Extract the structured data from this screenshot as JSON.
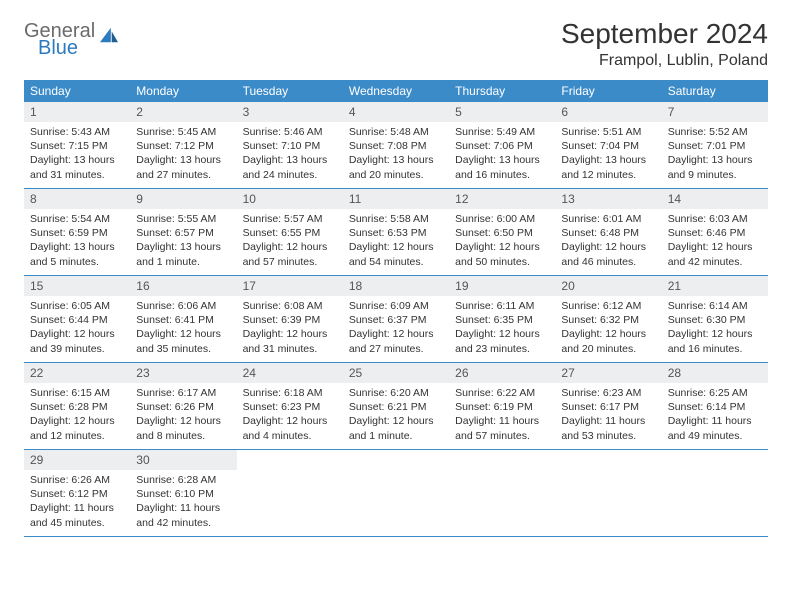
{
  "brand": {
    "line1": "General",
    "line2": "Blue"
  },
  "title": "September 2024",
  "location": "Frampol, Lublin, Poland",
  "colors": {
    "header_bar": "#3b8bc9",
    "daynum_bg": "#eceeef",
    "rule": "#3b8bc9",
    "text": "#333333",
    "logo_gray": "#6b6b6b",
    "logo_blue": "#2d7bbf"
  },
  "dow": [
    "Sunday",
    "Monday",
    "Tuesday",
    "Wednesday",
    "Thursday",
    "Friday",
    "Saturday"
  ],
  "weeks": [
    [
      {
        "n": "1",
        "sunrise": "Sunrise: 5:43 AM",
        "sunset": "Sunset: 7:15 PM",
        "daylight": "Daylight: 13 hours and 31 minutes."
      },
      {
        "n": "2",
        "sunrise": "Sunrise: 5:45 AM",
        "sunset": "Sunset: 7:12 PM",
        "daylight": "Daylight: 13 hours and 27 minutes."
      },
      {
        "n": "3",
        "sunrise": "Sunrise: 5:46 AM",
        "sunset": "Sunset: 7:10 PM",
        "daylight": "Daylight: 13 hours and 24 minutes."
      },
      {
        "n": "4",
        "sunrise": "Sunrise: 5:48 AM",
        "sunset": "Sunset: 7:08 PM",
        "daylight": "Daylight: 13 hours and 20 minutes."
      },
      {
        "n": "5",
        "sunrise": "Sunrise: 5:49 AM",
        "sunset": "Sunset: 7:06 PM",
        "daylight": "Daylight: 13 hours and 16 minutes."
      },
      {
        "n": "6",
        "sunrise": "Sunrise: 5:51 AM",
        "sunset": "Sunset: 7:04 PM",
        "daylight": "Daylight: 13 hours and 12 minutes."
      },
      {
        "n": "7",
        "sunrise": "Sunrise: 5:52 AM",
        "sunset": "Sunset: 7:01 PM",
        "daylight": "Daylight: 13 hours and 9 minutes."
      }
    ],
    [
      {
        "n": "8",
        "sunrise": "Sunrise: 5:54 AM",
        "sunset": "Sunset: 6:59 PM",
        "daylight": "Daylight: 13 hours and 5 minutes."
      },
      {
        "n": "9",
        "sunrise": "Sunrise: 5:55 AM",
        "sunset": "Sunset: 6:57 PM",
        "daylight": "Daylight: 13 hours and 1 minute."
      },
      {
        "n": "10",
        "sunrise": "Sunrise: 5:57 AM",
        "sunset": "Sunset: 6:55 PM",
        "daylight": "Daylight: 12 hours and 57 minutes."
      },
      {
        "n": "11",
        "sunrise": "Sunrise: 5:58 AM",
        "sunset": "Sunset: 6:53 PM",
        "daylight": "Daylight: 12 hours and 54 minutes."
      },
      {
        "n": "12",
        "sunrise": "Sunrise: 6:00 AM",
        "sunset": "Sunset: 6:50 PM",
        "daylight": "Daylight: 12 hours and 50 minutes."
      },
      {
        "n": "13",
        "sunrise": "Sunrise: 6:01 AM",
        "sunset": "Sunset: 6:48 PM",
        "daylight": "Daylight: 12 hours and 46 minutes."
      },
      {
        "n": "14",
        "sunrise": "Sunrise: 6:03 AM",
        "sunset": "Sunset: 6:46 PM",
        "daylight": "Daylight: 12 hours and 42 minutes."
      }
    ],
    [
      {
        "n": "15",
        "sunrise": "Sunrise: 6:05 AM",
        "sunset": "Sunset: 6:44 PM",
        "daylight": "Daylight: 12 hours and 39 minutes."
      },
      {
        "n": "16",
        "sunrise": "Sunrise: 6:06 AM",
        "sunset": "Sunset: 6:41 PM",
        "daylight": "Daylight: 12 hours and 35 minutes."
      },
      {
        "n": "17",
        "sunrise": "Sunrise: 6:08 AM",
        "sunset": "Sunset: 6:39 PM",
        "daylight": "Daylight: 12 hours and 31 minutes."
      },
      {
        "n": "18",
        "sunrise": "Sunrise: 6:09 AM",
        "sunset": "Sunset: 6:37 PM",
        "daylight": "Daylight: 12 hours and 27 minutes."
      },
      {
        "n": "19",
        "sunrise": "Sunrise: 6:11 AM",
        "sunset": "Sunset: 6:35 PM",
        "daylight": "Daylight: 12 hours and 23 minutes."
      },
      {
        "n": "20",
        "sunrise": "Sunrise: 6:12 AM",
        "sunset": "Sunset: 6:32 PM",
        "daylight": "Daylight: 12 hours and 20 minutes."
      },
      {
        "n": "21",
        "sunrise": "Sunrise: 6:14 AM",
        "sunset": "Sunset: 6:30 PM",
        "daylight": "Daylight: 12 hours and 16 minutes."
      }
    ],
    [
      {
        "n": "22",
        "sunrise": "Sunrise: 6:15 AM",
        "sunset": "Sunset: 6:28 PM",
        "daylight": "Daylight: 12 hours and 12 minutes."
      },
      {
        "n": "23",
        "sunrise": "Sunrise: 6:17 AM",
        "sunset": "Sunset: 6:26 PM",
        "daylight": "Daylight: 12 hours and 8 minutes."
      },
      {
        "n": "24",
        "sunrise": "Sunrise: 6:18 AM",
        "sunset": "Sunset: 6:23 PM",
        "daylight": "Daylight: 12 hours and 4 minutes."
      },
      {
        "n": "25",
        "sunrise": "Sunrise: 6:20 AM",
        "sunset": "Sunset: 6:21 PM",
        "daylight": "Daylight: 12 hours and 1 minute."
      },
      {
        "n": "26",
        "sunrise": "Sunrise: 6:22 AM",
        "sunset": "Sunset: 6:19 PM",
        "daylight": "Daylight: 11 hours and 57 minutes."
      },
      {
        "n": "27",
        "sunrise": "Sunrise: 6:23 AM",
        "sunset": "Sunset: 6:17 PM",
        "daylight": "Daylight: 11 hours and 53 minutes."
      },
      {
        "n": "28",
        "sunrise": "Sunrise: 6:25 AM",
        "sunset": "Sunset: 6:14 PM",
        "daylight": "Daylight: 11 hours and 49 minutes."
      }
    ],
    [
      {
        "n": "29",
        "sunrise": "Sunrise: 6:26 AM",
        "sunset": "Sunset: 6:12 PM",
        "daylight": "Daylight: 11 hours and 45 minutes."
      },
      {
        "n": "30",
        "sunrise": "Sunrise: 6:28 AM",
        "sunset": "Sunset: 6:10 PM",
        "daylight": "Daylight: 11 hours and 42 minutes."
      },
      null,
      null,
      null,
      null,
      null
    ]
  ]
}
